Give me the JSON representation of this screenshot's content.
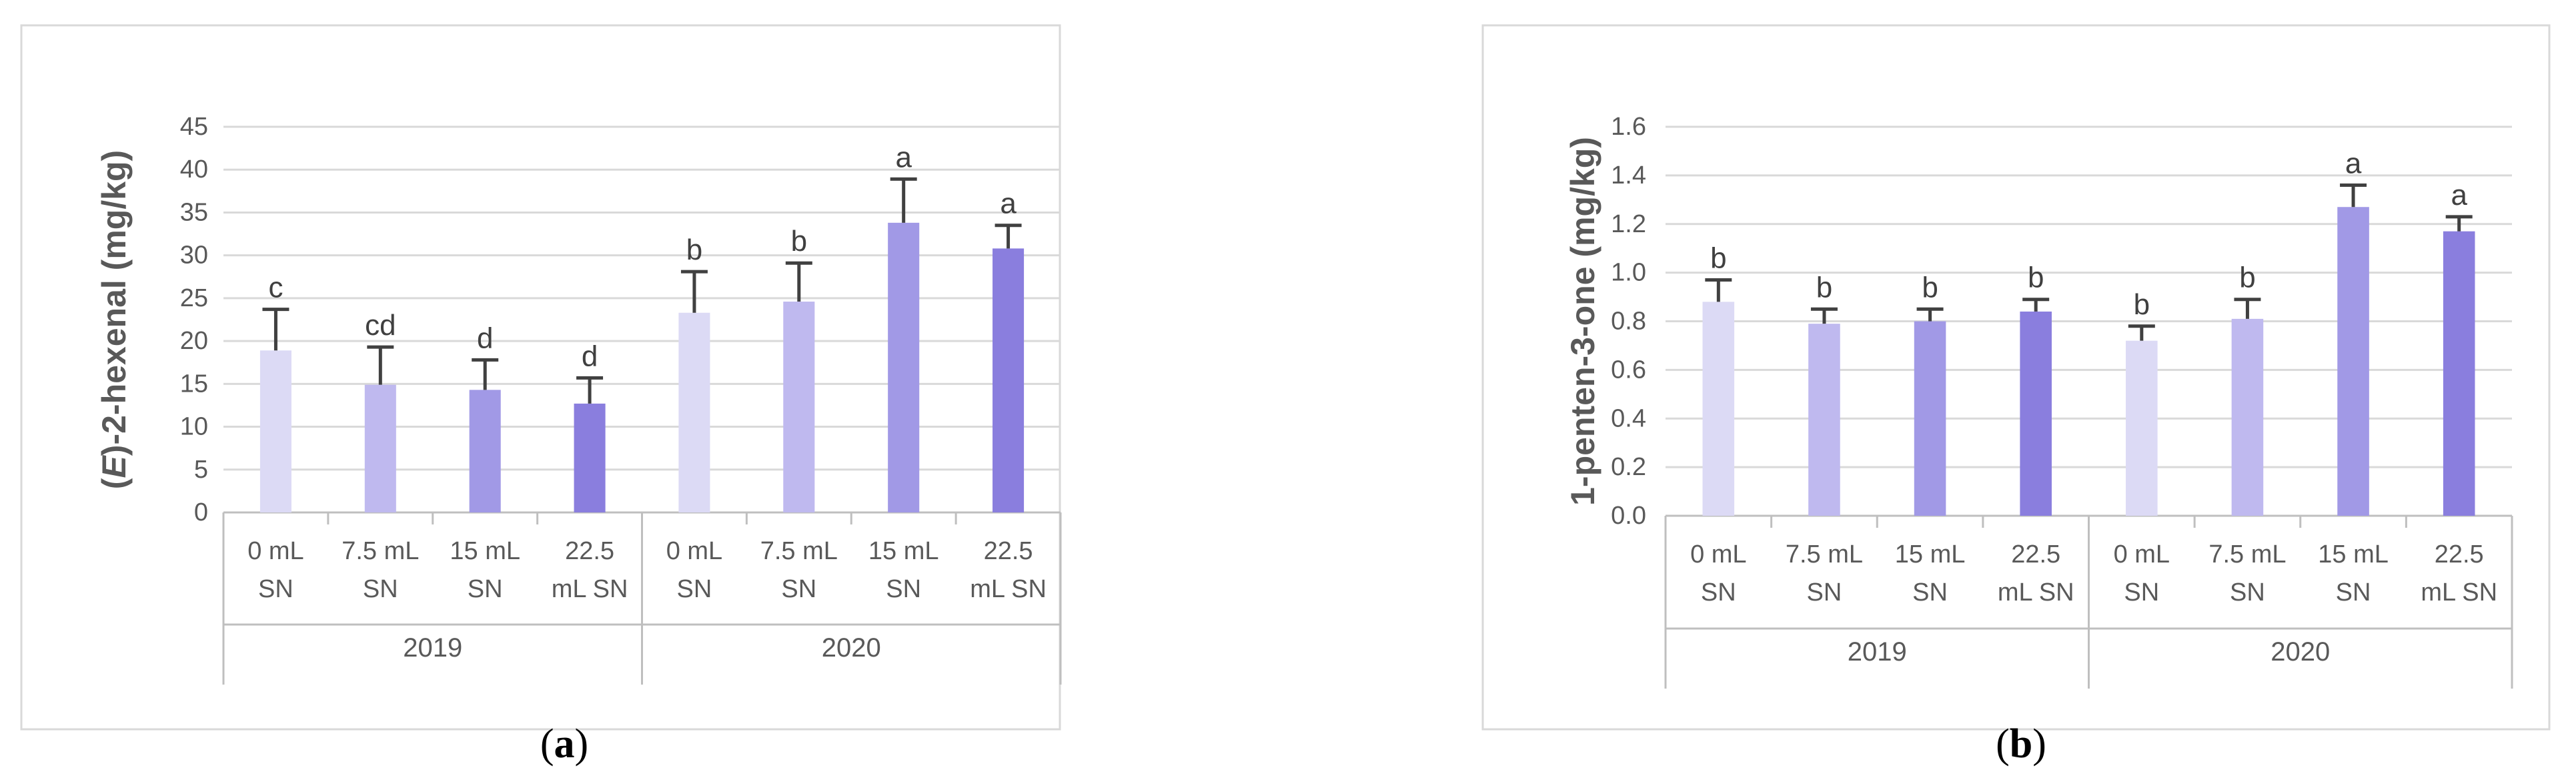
{
  "colors": {
    "panel_border": "#d9d9d9",
    "grid": "#d9d9d9",
    "axis": "#bfbfbf",
    "text": "#595959",
    "error_bar": "#404040",
    "bar_0ml": "#dcdaf5",
    "bar_7_5ml": "#bfb9ef",
    "bar_15ml": "#a199e6",
    "bar_22_5ml": "#8a7ede"
  },
  "chart_data": [
    {
      "type": "bar",
      "panel_label": "(a)",
      "panel_letter": "a",
      "ylabel_prefix": "(",
      "ylabel_italic": "E",
      "ylabel_rest": ")-2-hexenal (mg/kg)",
      "ylim": [
        0,
        45
      ],
      "yticks": [
        "0",
        "5",
        "10",
        "15",
        "20",
        "25",
        "30",
        "35",
        "40",
        "45"
      ],
      "grid": true,
      "legend": "none",
      "groups": [
        "2019",
        "2020"
      ],
      "categories": [
        [
          "0 mL",
          "SN"
        ],
        [
          "7.5 mL",
          "SN"
        ],
        [
          "15 mL",
          "SN"
        ],
        [
          "22.5",
          "mL SN"
        ],
        [
          "0 mL",
          "SN"
        ],
        [
          "7.5 mL",
          "SN"
        ],
        [
          "15 mL",
          "SN"
        ],
        [
          "22.5",
          "mL SN"
        ]
      ],
      "values": [
        18.9,
        14.9,
        14.3,
        12.7,
        23.3,
        24.6,
        33.8,
        30.8
      ],
      "errors": [
        4.8,
        4.4,
        3.5,
        3.0,
        4.8,
        4.5,
        5.1,
        2.7
      ],
      "significance": [
        "c",
        "cd",
        "d",
        "d",
        "b",
        "b",
        "a",
        "a"
      ]
    },
    {
      "type": "bar",
      "panel_label": "(b)",
      "panel_letter": "b",
      "ylabel_prefix": "",
      "ylabel_italic": "",
      "ylabel_rest": "1-penten-3-one (mg/kg)",
      "ylim": [
        0,
        1.6
      ],
      "yticks": [
        "0.0",
        "0.2",
        "0.4",
        "0.6",
        "0.8",
        "1.0",
        "1.2",
        "1.4",
        "1.6"
      ],
      "grid": true,
      "legend": "none",
      "groups": [
        "2019",
        "2020"
      ],
      "categories": [
        [
          "0 mL",
          "SN"
        ],
        [
          "7.5 mL",
          "SN"
        ],
        [
          "15 mL",
          "SN"
        ],
        [
          "22.5",
          "mL SN"
        ],
        [
          "0 mL",
          "SN"
        ],
        [
          "7.5 mL",
          "SN"
        ],
        [
          "15 mL",
          "SN"
        ],
        [
          "22.5",
          "mL SN"
        ]
      ],
      "values": [
        0.88,
        0.79,
        0.8,
        0.84,
        0.72,
        0.81,
        1.27,
        1.17
      ],
      "errors": [
        0.09,
        0.06,
        0.05,
        0.05,
        0.06,
        0.08,
        0.09,
        0.06
      ],
      "significance": [
        "b",
        "b",
        "b",
        "b",
        "b",
        "b",
        "a",
        "a"
      ]
    }
  ]
}
